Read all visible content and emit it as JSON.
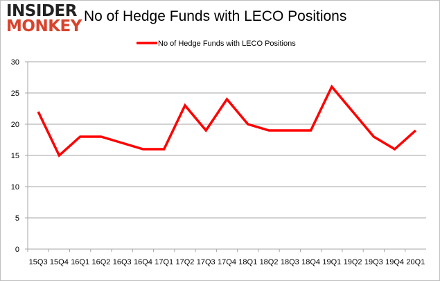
{
  "logo": {
    "line1": "INSIDER",
    "line2": "MONKEY"
  },
  "chart_data": {
    "type": "line",
    "title": "No of Hedge Funds with LECO Positions",
    "categories": [
      "15Q3",
      "15Q4",
      "16Q1",
      "16Q2",
      "16Q3",
      "16Q4",
      "17Q1",
      "17Q2",
      "17Q3",
      "17Q4",
      "18Q1",
      "18Q2",
      "18Q3",
      "18Q4",
      "19Q1",
      "19Q2",
      "19Q3",
      "19Q4",
      "20Q1"
    ],
    "series": [
      {
        "name": "No of Hedge Funds with LECO Positions",
        "color": "#ff0000",
        "values": [
          22,
          15,
          18,
          18,
          17,
          16,
          16,
          23,
          19,
          24,
          20,
          19,
          19,
          19,
          26,
          22,
          18,
          16,
          19
        ]
      }
    ],
    "yticks": [
      0,
      5,
      10,
      15,
      20,
      25,
      30
    ],
    "ylim": [
      0,
      30
    ],
    "grid": true,
    "legend": "top"
  }
}
